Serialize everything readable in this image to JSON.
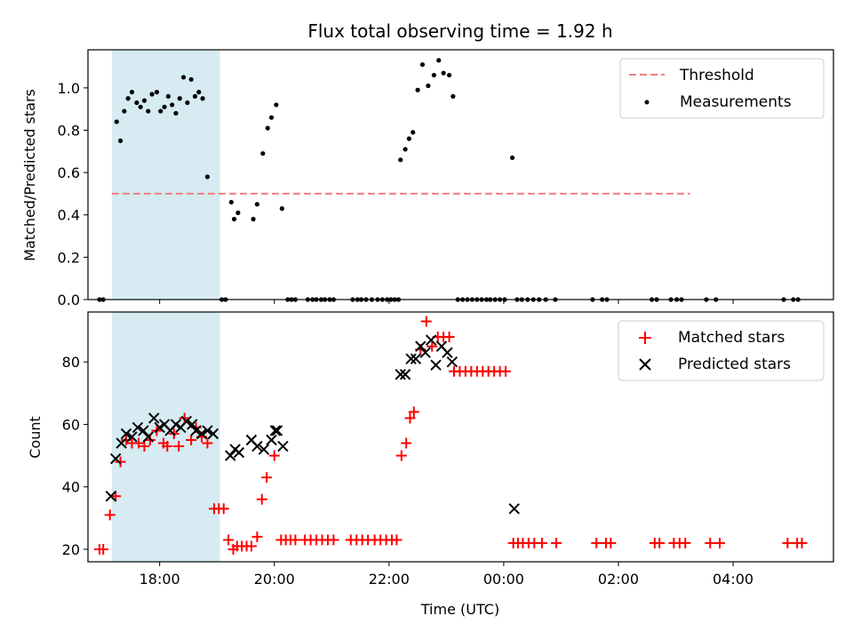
{
  "chart_data": [
    {
      "type": "scatter",
      "title": "Flux total observing time = 1.92 h",
      "ylabel": "Matched/Predicted stars",
      "xlabel": "",
      "xlim": [
        "16:45",
        "05:45"
      ],
      "ylim": [
        0,
        1.18
      ],
      "yticks": [
        "0.0",
        "0.2",
        "0.4",
        "0.6",
        "0.8",
        "1.0"
      ],
      "highlight_interval": [
        "17:10",
        "19:03"
      ],
      "threshold": {
        "name": "Threshold",
        "value": 0.5,
        "x_range": [
          "17:10",
          "03:15"
        ],
        "color": "#f08080"
      },
      "series": [
        {
          "name": "Measurements",
          "marker": "dot",
          "color": "#000000",
          "points": [
            [
              "17:15",
              0.84
            ],
            [
              "17:19",
              0.75
            ],
            [
              "17:23",
              0.89
            ],
            [
              "17:27",
              0.95
            ],
            [
              "17:31",
              0.98
            ],
            [
              "17:36",
              0.93
            ],
            [
              "17:40",
              0.91
            ],
            [
              "17:44",
              0.94
            ],
            [
              "17:48",
              0.89
            ],
            [
              "17:52",
              0.97
            ],
            [
              "17:57",
              0.98
            ],
            [
              "18:01",
              0.89
            ],
            [
              "18:05",
              0.91
            ],
            [
              "18:09",
              0.96
            ],
            [
              "18:13",
              0.92
            ],
            [
              "18:17",
              0.88
            ],
            [
              "18:21",
              0.95
            ],
            [
              "18:25",
              1.05
            ],
            [
              "18:29",
              0.93
            ],
            [
              "18:33",
              1.04
            ],
            [
              "18:37",
              0.96
            ],
            [
              "18:41",
              0.98
            ],
            [
              "18:45",
              0.95
            ],
            [
              "18:50",
              0.58
            ],
            [
              "19:15",
              0.46
            ],
            [
              "19:18",
              0.38
            ],
            [
              "19:22",
              0.41
            ],
            [
              "19:38",
              0.38
            ],
            [
              "19:42",
              0.45
            ],
            [
              "19:48",
              0.69
            ],
            [
              "19:53",
              0.81
            ],
            [
              "19:57",
              0.86
            ],
            [
              "20:02",
              0.92
            ],
            [
              "20:08",
              0.43
            ],
            [
              "22:12",
              0.66
            ],
            [
              "22:17",
              0.71
            ],
            [
              "22:21",
              0.76
            ],
            [
              "22:25",
              0.79
            ],
            [
              "22:30",
              0.99
            ],
            [
              "22:35",
              1.11
            ],
            [
              "22:41",
              1.01
            ],
            [
              "22:47",
              1.06
            ],
            [
              "22:52",
              1.13
            ],
            [
              "22:57",
              1.07
            ],
            [
              "23:03",
              1.06
            ],
            [
              "23:07",
              0.96
            ],
            [
              "00:09",
              0.67
            ],
            [
              "16:57",
              0
            ],
            [
              "17:01",
              0
            ],
            [
              "19:05",
              0
            ],
            [
              "19:09",
              0
            ],
            [
              "20:14",
              0
            ],
            [
              "20:18",
              0
            ],
            [
              "20:22",
              0
            ],
            [
              "20:35",
              0
            ],
            [
              "20:40",
              0
            ],
            [
              "20:44",
              0
            ],
            [
              "20:49",
              0
            ],
            [
              "20:53",
              0
            ],
            [
              "20:58",
              0
            ],
            [
              "21:02",
              0
            ],
            [
              "21:22",
              0
            ],
            [
              "21:27",
              0
            ],
            [
              "21:31",
              0
            ],
            [
              "21:36",
              0
            ],
            [
              "21:42",
              0
            ],
            [
              "21:48",
              0
            ],
            [
              "21:53",
              0
            ],
            [
              "21:58",
              0
            ],
            [
              "22:02",
              0
            ],
            [
              "22:06",
              0
            ],
            [
              "22:10",
              0
            ],
            [
              "23:12",
              0
            ],
            [
              "23:17",
              0
            ],
            [
              "23:22",
              0
            ],
            [
              "23:27",
              0
            ],
            [
              "23:32",
              0
            ],
            [
              "23:37",
              0
            ],
            [
              "23:42",
              0
            ],
            [
              "23:46",
              0
            ],
            [
              "23:51",
              0
            ],
            [
              "23:56",
              0
            ],
            [
              "00:01",
              0
            ],
            [
              "00:14",
              0
            ],
            [
              "00:19",
              0
            ],
            [
              "00:25",
              0
            ],
            [
              "00:31",
              0
            ],
            [
              "00:37",
              0
            ],
            [
              "00:44",
              0
            ],
            [
              "00:54",
              0
            ],
            [
              "01:33",
              0
            ],
            [
              "01:43",
              0
            ],
            [
              "01:48",
              0
            ],
            [
              "02:35",
              0
            ],
            [
              "02:40",
              0
            ],
            [
              "02:55",
              0
            ],
            [
              "03:01",
              0
            ],
            [
              "03:06",
              0
            ],
            [
              "03:32",
              0
            ],
            [
              "03:42",
              0
            ],
            [
              "04:53",
              0
            ],
            [
              "05:03",
              0
            ],
            [
              "05:08",
              0
            ]
          ]
        }
      ],
      "legend": {
        "position": "upper right",
        "entries": [
          "Threshold",
          "Measurements"
        ]
      }
    },
    {
      "type": "scatter",
      "title": "",
      "xlabel": "Time (UTC)",
      "ylabel": "Count",
      "xlim": [
        "16:45",
        "05:45"
      ],
      "ylim": [
        16,
        96
      ],
      "xticks": [
        "18:00",
        "20:00",
        "22:00",
        "00:00",
        "02:00",
        "04:00"
      ],
      "yticks": [
        "20",
        "40",
        "60",
        "80"
      ],
      "highlight_interval": [
        "17:10",
        "19:03"
      ],
      "series": [
        {
          "name": "Matched stars",
          "marker": "plus",
          "color": "#ff0000",
          "points": [
            [
              "16:57",
              20
            ],
            [
              "17:01",
              20
            ],
            [
              "17:08",
              31
            ],
            [
              "17:14",
              37
            ],
            [
              "17:19",
              48
            ],
            [
              "17:25",
              55
            ],
            [
              "17:31",
              54
            ],
            [
              "17:38",
              54
            ],
            [
              "17:44",
              53
            ],
            [
              "17:50",
              55
            ],
            [
              "17:57",
              58
            ],
            [
              "18:04",
              54
            ],
            [
              "18:08",
              53
            ],
            [
              "18:15",
              57
            ],
            [
              "18:20",
              53
            ],
            [
              "18:26",
              62
            ],
            [
              "18:33",
              55
            ],
            [
              "18:38",
              59
            ],
            [
              "18:44",
              56
            ],
            [
              "18:50",
              54
            ],
            [
              "18:57",
              33
            ],
            [
              "19:02",
              33
            ],
            [
              "19:07",
              33
            ],
            [
              "19:12",
              23
            ],
            [
              "19:17",
              20
            ],
            [
              "19:21",
              21
            ],
            [
              "19:26",
              21
            ],
            [
              "19:31",
              21
            ],
            [
              "19:36",
              21
            ],
            [
              "19:42",
              24
            ],
            [
              "19:47",
              36
            ],
            [
              "19:52",
              43
            ],
            [
              "20:00",
              50
            ],
            [
              "20:07",
              23
            ],
            [
              "20:12",
              23
            ],
            [
              "20:17",
              23
            ],
            [
              "20:22",
              23
            ],
            [
              "20:32",
              23
            ],
            [
              "20:38",
              23
            ],
            [
              "20:44",
              23
            ],
            [
              "20:50",
              23
            ],
            [
              "20:56",
              23
            ],
            [
              "21:02",
              23
            ],
            [
              "21:20",
              23
            ],
            [
              "21:26",
              23
            ],
            [
              "21:32",
              23
            ],
            [
              "21:38",
              23
            ],
            [
              "21:45",
              23
            ],
            [
              "21:51",
              23
            ],
            [
              "21:57",
              23
            ],
            [
              "22:03",
              23
            ],
            [
              "22:08",
              23
            ],
            [
              "22:13",
              50
            ],
            [
              "22:18",
              54
            ],
            [
              "22:22",
              62
            ],
            [
              "22:26",
              64
            ],
            [
              "22:33",
              84
            ],
            [
              "22:39",
              93
            ],
            [
              "22:45",
              85
            ],
            [
              "22:51",
              88
            ],
            [
              "22:57",
              88
            ],
            [
              "23:03",
              88
            ],
            [
              "23:08",
              77
            ],
            [
              "23:14",
              77
            ],
            [
              "23:20",
              77
            ],
            [
              "23:26",
              77
            ],
            [
              "23:32",
              77
            ],
            [
              "23:38",
              77
            ],
            [
              "23:44",
              77
            ],
            [
              "23:50",
              77
            ],
            [
              "23:56",
              77
            ],
            [
              "00:02",
              77
            ],
            [
              "00:10",
              22
            ],
            [
              "00:15",
              22
            ],
            [
              "00:20",
              22
            ],
            [
              "00:26",
              22
            ],
            [
              "00:32",
              22
            ],
            [
              "00:40",
              22
            ],
            [
              "00:55",
              22
            ],
            [
              "01:37",
              22
            ],
            [
              "01:47",
              22
            ],
            [
              "01:52",
              22
            ],
            [
              "02:38",
              22
            ],
            [
              "02:43",
              22
            ],
            [
              "02:58",
              22
            ],
            [
              "03:04",
              22
            ],
            [
              "03:10",
              22
            ],
            [
              "03:36",
              22
            ],
            [
              "03:46",
              22
            ],
            [
              "04:57",
              22
            ],
            [
              "05:07",
              22
            ],
            [
              "05:12",
              22
            ]
          ]
        },
        {
          "name": "Predicted stars",
          "marker": "x",
          "color": "#000000",
          "points": [
            [
              "17:09",
              37
            ],
            [
              "17:14",
              49
            ],
            [
              "17:20",
              54
            ],
            [
              "17:25",
              57
            ],
            [
              "17:31",
              56
            ],
            [
              "17:37",
              59
            ],
            [
              "17:43",
              58
            ],
            [
              "17:48",
              56
            ],
            [
              "17:54",
              62
            ],
            [
              "18:00",
              59
            ],
            [
              "18:05",
              60
            ],
            [
              "18:11",
              58
            ],
            [
              "18:17",
              60
            ],
            [
              "18:22",
              59
            ],
            [
              "18:28",
              61
            ],
            [
              "18:34",
              60
            ],
            [
              "18:38",
              58
            ],
            [
              "18:44",
              57
            ],
            [
              "18:50",
              58
            ],
            [
              "18:56",
              57
            ],
            [
              "19:14",
              50
            ],
            [
              "19:19",
              52
            ],
            [
              "19:23",
              51
            ],
            [
              "19:36",
              55
            ],
            [
              "19:42",
              53
            ],
            [
              "19:49",
              52
            ],
            [
              "19:57",
              55
            ],
            [
              "20:03",
              58
            ],
            [
              "20:09",
              53
            ],
            [
              "20:01",
              58
            ],
            [
              "22:12",
              76
            ],
            [
              "22:17",
              76
            ],
            [
              "22:23",
              81
            ],
            [
              "22:28",
              81
            ],
            [
              "22:33",
              85
            ],
            [
              "22:38",
              83
            ],
            [
              "22:44",
              87
            ],
            [
              "22:49",
              79
            ],
            [
              "22:55",
              85
            ],
            [
              "23:01",
              83
            ],
            [
              "23:06",
              80
            ],
            [
              "00:11",
              33
            ]
          ]
        }
      ],
      "legend": {
        "position": "upper right",
        "entries": [
          "Matched stars",
          "Predicted stars"
        ]
      }
    }
  ]
}
